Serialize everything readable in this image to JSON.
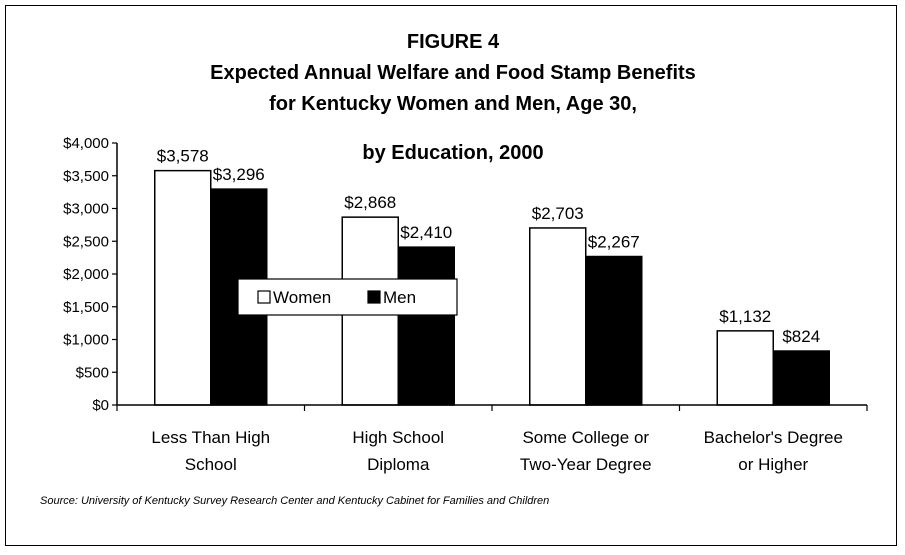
{
  "chart_data": {
    "type": "bar",
    "title": [
      "FIGURE 4",
      "Expected Annual Welfare and Food Stamp Benefits",
      "for Kentucky Women and Men, Age 30,",
      "by Education, 2000"
    ],
    "categories": [
      [
        "Less Than High",
        "School"
      ],
      [
        "High School",
        "Diploma"
      ],
      [
        "Some College or",
        "Two-Year Degree"
      ],
      [
        "Bachelor's Degree",
        "or Higher"
      ]
    ],
    "series": [
      {
        "name": "Women",
        "color": "#ffffff",
        "values": [
          3578,
          2868,
          2703,
          1132
        ],
        "labels": [
          "$3,578",
          "$2,868",
          "$2,703",
          "$1,132"
        ]
      },
      {
        "name": "Men",
        "color": "#000000",
        "values": [
          3296,
          2410,
          2267,
          824
        ],
        "labels": [
          "$3,296",
          "$2,410",
          "$2,267",
          "$824"
        ]
      }
    ],
    "ylim": [
      0,
      4000
    ],
    "yticks": [
      0,
      500,
      1000,
      1500,
      2000,
      2500,
      3000,
      3500,
      4000
    ],
    "ytick_labels": [
      "$0",
      "$500",
      "$1,000",
      "$1,500",
      "$2,000",
      "$2,500",
      "$3,000",
      "$3,500",
      "$4,000"
    ],
    "legend_position": "center-left",
    "grid": false
  },
  "source": "Source: University of Kentucky Survey Research Center and Kentucky Cabinet for Families and Children"
}
